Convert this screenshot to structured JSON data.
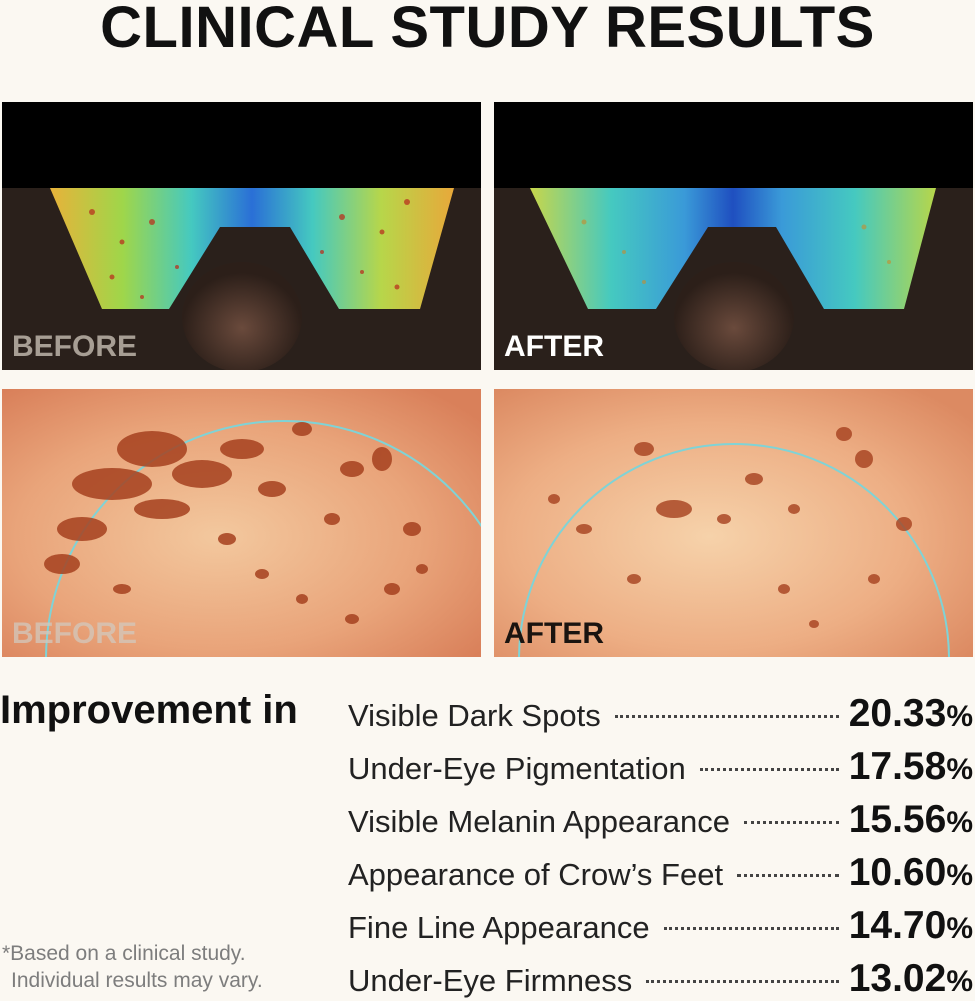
{
  "title": "CLINICAL STUDY RESULTS",
  "panels": {
    "top_before": "BEFORE",
    "top_after": "AFTER",
    "bottom_before": "BEFORE",
    "bottom_after": "AFTER"
  },
  "improvement": {
    "heading": "Improvement in",
    "percent_sign": "%",
    "rows": [
      {
        "label": "Visible Dark Spots",
        "value": "20.33"
      },
      {
        "label": "Under-Eye Pigmentation",
        "value": "17.58"
      },
      {
        "label": "Visible Melanin Appearance",
        "value": "15.56"
      },
      {
        "label": "Appearance of Crow’s Feet",
        "value": "10.60"
      },
      {
        "label": "Fine Line Appearance",
        "value": "14.70"
      },
      {
        "label": "Under-Eye Firmness",
        "value": "13.02"
      }
    ]
  },
  "disclaimer": {
    "line1": "*Based on a clinical study.",
    "line2": "Individual results may vary."
  },
  "colors": {
    "background": "#fbf8f2",
    "text": "#111111",
    "heatmap_cool": "#2a6fd6",
    "heatmap_warm": "#e8b23a",
    "skin": "#e9a47a",
    "spot": "#a6411f",
    "scan_circle": "#7fd3d6"
  }
}
